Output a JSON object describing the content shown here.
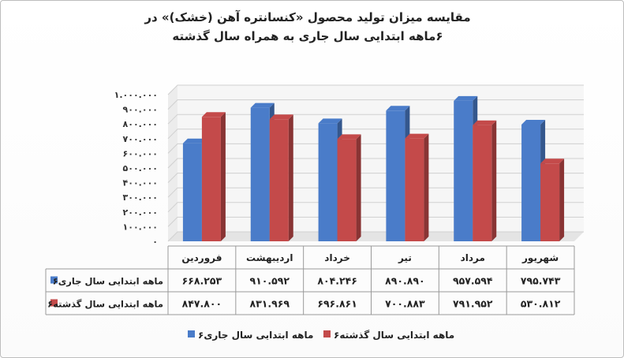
{
  "chart_data": {
    "type": "bar",
    "title": "مقایسه میزان تولید محصول «کنسانتره آهن (خشک)» در ۶ماهه ابتدایی سال جاری به همراه سال گذشته",
    "categories": [
      "فروردین",
      "اردیبهشت",
      "خرداد",
      "تیر",
      "مرداد",
      "شهریور"
    ],
    "series": [
      {
        "name": "۶ماهه ابتدایی سال جاری",
        "values": [
          668253,
          910592,
          804246,
          890890,
          957594,
          795743
        ],
        "labels": [
          "۶۶۸.۲۵۳",
          "۹۱۰.۵۹۲",
          "۸۰۴.۲۴۶",
          "۸۹۰.۸۹۰",
          "۹۵۷.۵۹۴",
          "۷۹۵.۷۴۳"
        ],
        "color": "#4a7cc9"
      },
      {
        "name": "۶ماهه ابتدایی سال گذشته",
        "values": [
          847800,
          831969,
          696861,
          700883,
          791952,
          530812
        ],
        "labels": [
          "۸۴۷.۸۰۰",
          "۸۳۱.۹۶۹",
          "۶۹۶.۸۶۱",
          "۷۰۰.۸۸۳",
          "۷۹۱.۹۵۲",
          "۵۳۰.۸۱۲"
        ],
        "color": "#c44a4a"
      }
    ],
    "ylim": [
      0,
      1000000
    ],
    "yticks": [
      "۰",
      "۱۰۰.۰۰۰",
      "۲۰۰.۰۰۰",
      "۳۰۰.۰۰۰",
      "۴۰۰.۰۰۰",
      "۵۰۰.۰۰۰",
      "۶۰۰.۰۰۰",
      "۷۰۰.۰۰۰",
      "۸۰۰.۰۰۰",
      "۹۰۰.۰۰۰",
      "۱.۰۰۰.۰۰۰"
    ],
    "grid": true,
    "legend_position": "bottom",
    "data_table": true
  }
}
